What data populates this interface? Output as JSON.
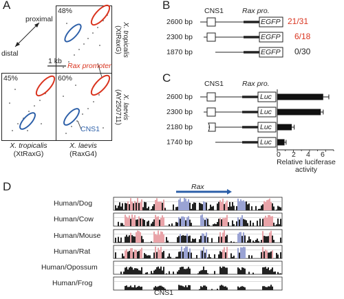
{
  "panel_a": {
    "label": "A",
    "pct_top": "48%",
    "pct_left": "45%",
    "pct_center": "60%",
    "proximal": "proximal",
    "distal": "distal",
    "scale": "1 kb",
    "rax_promoter": "Rax promoter",
    "cns1": "CNS1",
    "y_top_species": "X. tropicalis",
    "y_top_gene": "(XtRaxG)",
    "y_bottom_species": "X. laevis",
    "y_bottom_gene": "(AY250711)",
    "x_left_species": "X. tropicalis",
    "x_left_gene": "(XtRaxG)",
    "x_right_species": "X. laevis",
    "x_right_gene": "(RaxG4)"
  },
  "panel_b": {
    "label": "B",
    "cns1": "CNS1",
    "rax_pro": "Rax pro.",
    "rows": [
      {
        "size": "2600 bp",
        "reporter": "EGFP",
        "count": "21/31",
        "color": "#d9341f"
      },
      {
        "size": "2300 bp",
        "reporter": "EGFP",
        "count": "6/18",
        "color": "#d9341f"
      },
      {
        "size": "1870 bp",
        "reporter": "EGFP",
        "count": "0/30",
        "color": "#222222"
      }
    ]
  },
  "panel_c": {
    "label": "C",
    "cns1": "CNS1",
    "rax_pro": "Rax pro.",
    "rows": [
      {
        "size": "2600 bp",
        "reporter": "Luc"
      },
      {
        "size": "2300 bp",
        "reporter": "Luc"
      },
      {
        "size": "2180 bp",
        "reporter": "Luc"
      },
      {
        "size": "1740 bp",
        "reporter": "Luc"
      }
    ],
    "chart_data": {
      "type": "bar",
      "categories": [
        "2600 bp",
        "2300 bp",
        "2180 bp",
        "1740 bp"
      ],
      "values": [
        5.7,
        5.4,
        1.8,
        0.9
      ],
      "errors": [
        0.7,
        0.3,
        0.3,
        0.2
      ],
      "xlim": [
        0,
        7
      ],
      "ticks": [
        "0",
        "2",
        "4",
        "6"
      ],
      "xlabel_line1": "Relative luciferase",
      "xlabel_line2": "activity"
    }
  },
  "panel_d": {
    "label": "D",
    "rax": "Rax",
    "cns1": "CNS1",
    "rows": [
      "Human/Dog",
      "Human/Cow",
      "Human/Mouse",
      "Human/Rat",
      "Human/Opossum",
      "Human/Frog"
    ],
    "colors": {
      "pink": "#e9a3a8",
      "blue": "#9aa3d4",
      "gray": "#d8d8d8"
    }
  }
}
